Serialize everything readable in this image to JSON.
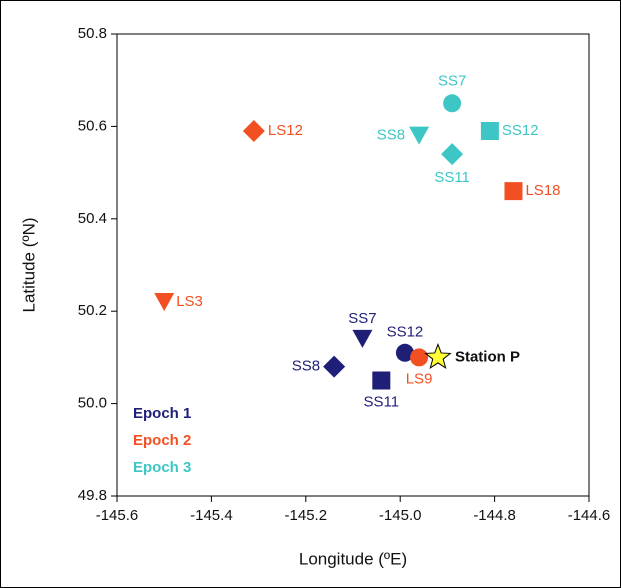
{
  "chart_data": {
    "type": "scatter",
    "xlabel": "Longitude (ºE)",
    "ylabel": "Latitude (ºN)",
    "xlim": [
      -145.6,
      -144.6
    ],
    "xticks": [
      -145.6,
      -145.4,
      -145.2,
      {
        "value": -145,
        "label": "-145.0"
      },
      -144.8,
      -144.6
    ],
    "ylim": [
      49.8,
      50.8
    ],
    "yticks": [
      49.8,
      {
        "value": 50,
        "label": "50.0"
      },
      50.2,
      50.4,
      50.6,
      50.8
    ],
    "legend": "lower left",
    "series": [
      {
        "name": "Epoch 1",
        "color": "#1f1f78",
        "x": [
          -145.14,
          -145.08,
          -144.99,
          -145.04
        ],
        "y": [
          50.08,
          50.14,
          50.11,
          50.05
        ],
        "labels": [
          "SS8",
          "SS7",
          "SS12",
          "SS11"
        ],
        "markers": [
          "diamond",
          "triangle-down",
          "circle",
          "square"
        ]
      },
      {
        "name": "Epoch 2",
        "color": "#f25022",
        "x": [
          -145.31,
          -145.5,
          -144.76,
          -144.96
        ],
        "y": [
          50.59,
          50.22,
          50.46,
          50.1
        ],
        "labels": [
          "LS12",
          "LS3",
          "LS18",
          "LS9"
        ],
        "markers": [
          "diamond",
          "triangle-down",
          "square",
          "circle"
        ]
      },
      {
        "name": "Epoch 3",
        "color": "#3ec6c6",
        "x": [
          -144.89,
          -144.96,
          -144.81,
          -144.89
        ],
        "y": [
          50.65,
          50.58,
          50.59,
          50.54
        ],
        "labels": [
          "SS7",
          "SS8",
          "SS12",
          "SS11"
        ],
        "markers": [
          "circle",
          "triangle-down",
          "square",
          "diamond"
        ]
      }
    ],
    "annotation": {
      "text": "Station P",
      "x": -144.92,
      "y": 50.1,
      "color": "#ffff33",
      "marker": "star"
    }
  }
}
